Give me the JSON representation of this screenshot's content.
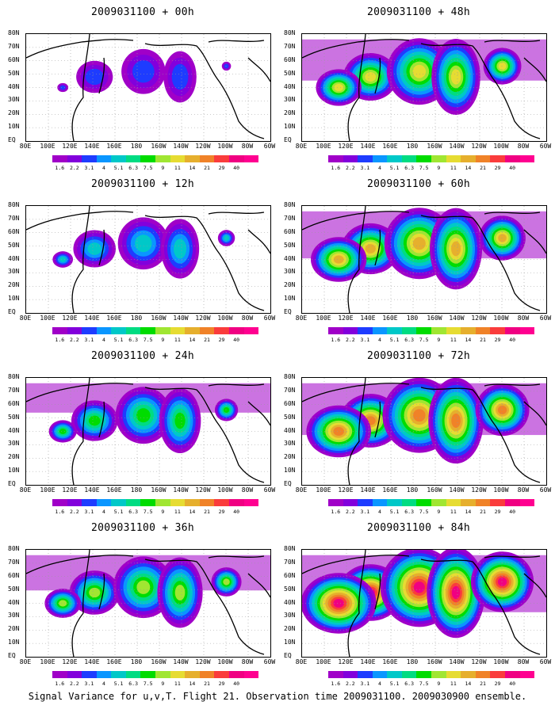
{
  "panels": [
    {
      "title": "2009031100 + 00h",
      "col": 0,
      "row": 0,
      "intensity": 0.25
    },
    {
      "title": "2009031100 + 48h",
      "col": 1,
      "row": 0,
      "intensity": 0.7
    },
    {
      "title": "2009031100 + 12h",
      "col": 0,
      "row": 1,
      "intensity": 0.4
    },
    {
      "title": "2009031100 + 60h",
      "col": 1,
      "row": 1,
      "intensity": 0.8
    },
    {
      "title": "2009031100 + 24h",
      "col": 0,
      "row": 2,
      "intensity": 0.5
    },
    {
      "title": "2009031100 + 72h",
      "col": 1,
      "row": 2,
      "intensity": 0.88
    },
    {
      "title": "2009031100 + 36h",
      "col": 0,
      "row": 3,
      "intensity": 0.6
    },
    {
      "title": "2009031100 + 84h",
      "col": 1,
      "row": 3,
      "intensity": 0.97
    }
  ],
  "lat_labels": [
    "80N",
    "70N",
    "60N",
    "50N",
    "40N",
    "30N",
    "20N",
    "10N",
    "EQ"
  ],
  "lon_labels": [
    "80E",
    "100E",
    "120E",
    "140E",
    "160E",
    "180",
    "160W",
    "140W",
    "120W",
    "100W",
    "80W",
    "60W"
  ],
  "colorbar": {
    "labels": [
      "1.6",
      "2.2",
      "3.1",
      "4",
      "5.1",
      "6.3",
      "7.5",
      "9",
      "11",
      "14",
      "21",
      "29",
      "40"
    ],
    "colors": [
      "#a000c8",
      "#8200dc",
      "#1e3cff",
      "#0a96ff",
      "#00c8c8",
      "#00dc82",
      "#00dc00",
      "#a0e632",
      "#e6dc32",
      "#e6af2d",
      "#f08228",
      "#fa3c3c",
      "#f00082"
    ]
  },
  "caption": "Signal Variance for u,v,T. Flight 21. Observation time 2009031100. 2009030900 ensemble."
}
